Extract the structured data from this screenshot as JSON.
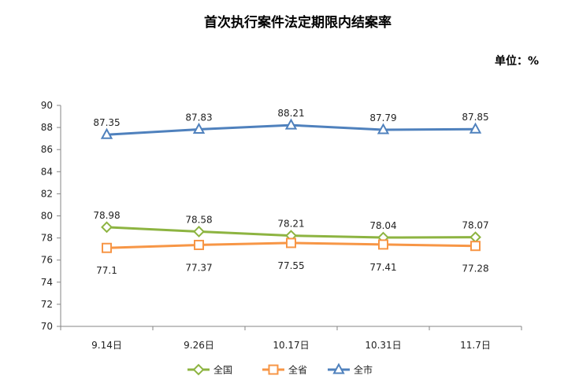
{
  "chart_data": {
    "type": "line",
    "title": "首次执行案件法定期限内结案率",
    "unit_label": "单位：%",
    "xlabel": "",
    "ylabel": "",
    "categories": [
      "9.14日",
      "9.26日",
      "10.17日",
      "10.31日",
      "11.7日"
    ],
    "ylim": [
      70,
      90
    ],
    "ytick_step": 2,
    "grid": false,
    "legend_position": "bottom",
    "series": [
      {
        "name": "全国",
        "values": [
          78.98,
          78.58,
          78.21,
          78.04,
          78.07
        ],
        "color": "#8db441",
        "marker": "diamond",
        "labels": [
          "78.98",
          "78.58",
          "78.21",
          "78.04",
          "78.07"
        ],
        "label_position": "above"
      },
      {
        "name": "全省",
        "values": [
          77.1,
          77.37,
          77.55,
          77.41,
          77.28
        ],
        "color": "#f79646",
        "marker": "square",
        "labels": [
          "77.1",
          "77.37",
          "77.55",
          "77.41",
          "77.28"
        ],
        "label_position": "below"
      },
      {
        "name": "全市",
        "values": [
          87.35,
          87.83,
          88.21,
          87.79,
          87.85
        ],
        "color": "#4f81bd",
        "marker": "triangle",
        "labels": [
          "87.35",
          "87.83",
          "88.21",
          "87.79",
          "87.85"
        ],
        "label_position": "above"
      }
    ]
  }
}
